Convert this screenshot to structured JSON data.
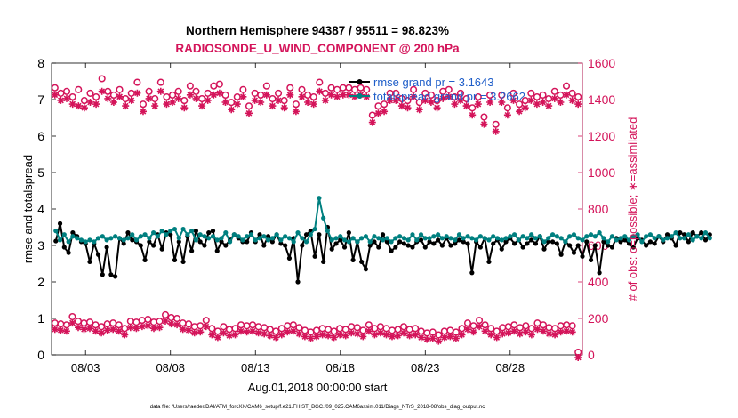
{
  "chart_data": {
    "type": "line",
    "title_line1": "Northern Hemisphere 94387 / 95511 = 98.823%",
    "title_line2": "RADIOSONDE_U_WIND_COMPONENT @ 200 hPa",
    "ylabel_left": "rmse and totalspread",
    "ylabel_right": "# of obs: o=possible; ∗=assimilated",
    "xlabel": "Aug.01,2018 00:00:00 start",
    "footnote": "data file: /Users/raeder/DAI/ATM_forcXX/CAM6_setup/f.e21.FHIST_BGC.f09_025.CAM6assim.011/Diags_NTrS_2018-08/obs_diag_output.nc",
    "xlim": [
      1.0,
      32.25
    ],
    "ylim_left": [
      0,
      8
    ],
    "ylim_right": [
      0,
      1600
    ],
    "x_tick_values": [
      3,
      8,
      13,
      18,
      23,
      28
    ],
    "x_tick_labels": [
      "08/03",
      "08/08",
      "08/13",
      "08/18",
      "08/23",
      "08/28"
    ],
    "y_left_ticks": [
      "0",
      "1",
      "2",
      "3",
      "4",
      "5",
      "6",
      "7",
      "8"
    ],
    "y_right_ticks": [
      "0",
      "200",
      "400",
      "600",
      "800",
      "1000",
      "1200",
      "1400",
      "1600"
    ],
    "x_start": 1.25,
    "x_step": 0.25,
    "series": [
      {
        "name": "rmse",
        "legend": "rmse grand pr = 3.1643",
        "color": "#000000",
        "axis": "left",
        "values": [
          3.12,
          3.6,
          2.95,
          2.8,
          3.35,
          3.25,
          3.1,
          3.05,
          2.55,
          3.05,
          2.75,
          2.2,
          2.95,
          2.2,
          2.15,
          3.2,
          3.05,
          3.35,
          3.15,
          3.1,
          3.0,
          2.6,
          3.1,
          3.0,
          3.3,
          2.9,
          3.35,
          3.3,
          2.6,
          3.1,
          2.55,
          3.25,
          2.85,
          3.4,
          3.1,
          3.0,
          3.35,
          3.4,
          2.85,
          3.1,
          3.0,
          3.15,
          3.3,
          3.2,
          3.1,
          3.1,
          3.35,
          3.1,
          3.3,
          3.0,
          3.25,
          3.1,
          3.3,
          3.05,
          3.0,
          2.65,
          3.2,
          2.0,
          3.0,
          3.3,
          3.4,
          2.7,
          3.3,
          2.55,
          3.5,
          2.9,
          3.05,
          3.15,
          2.95,
          3.35,
          2.6,
          3.1,
          2.55,
          2.35,
          3.0,
          3.1,
          2.95,
          3.3,
          3.1,
          2.85,
          2.95,
          3.1,
          3.05,
          3.0,
          2.95,
          3.1,
          3.15,
          2.95,
          3.1,
          3.05,
          3.15,
          3.0,
          3.2,
          3.0,
          3.05,
          3.15,
          3.1,
          3.05,
          2.25,
          3.1,
          2.95,
          3.2,
          2.55,
          3.05,
          3.15,
          2.9,
          3.1,
          3.2,
          3.05,
          3.15,
          2.95,
          3.05,
          3.15,
          3.05,
          3.25,
          2.9,
          3.1,
          3.1,
          3.05,
          2.75,
          3.1,
          3.0,
          2.8,
          3.0,
          2.7,
          3.1,
          2.6,
          3.0,
          2.25,
          3.1,
          3.0,
          2.95,
          3.2,
          3.1,
          3.15,
          3.05,
          2.95,
          3.2,
          3.15,
          3.0,
          3.1,
          3.05,
          3.25,
          3.1,
          3.3,
          3.2,
          3.0,
          3.35,
          3.3,
          3.1,
          3.35,
          3.25,
          3.35,
          3.15,
          3.3
        ]
      },
      {
        "name": "totalspread",
        "legend": "totalspread grand pr = 3.2662",
        "color": "#008080",
        "axis": "left",
        "values": [
          3.4,
          3.15,
          3.3,
          3.1,
          3.25,
          3.2,
          3.15,
          3.1,
          3.15,
          3.1,
          3.2,
          3.25,
          3.15,
          3.2,
          3.25,
          3.2,
          3.15,
          3.2,
          3.3,
          3.15,
          3.25,
          3.3,
          3.2,
          3.35,
          3.25,
          3.4,
          3.3,
          3.4,
          3.45,
          3.2,
          3.45,
          3.3,
          3.4,
          3.15,
          3.3,
          3.25,
          3.2,
          3.25,
          3.15,
          3.2,
          3.35,
          3.1,
          3.3,
          3.25,
          3.15,
          3.25,
          3.3,
          3.15,
          3.2,
          3.25,
          3.15,
          3.2,
          3.3,
          3.15,
          3.25,
          3.2,
          3.1,
          3.35,
          3.2,
          3.1,
          3.3,
          3.45,
          4.3,
          3.75,
          3.4,
          3.15,
          3.2,
          3.25,
          3.15,
          3.1,
          3.2,
          3.1,
          3.2,
          3.25,
          3.1,
          3.25,
          3.2,
          3.15,
          3.2,
          3.1,
          3.2,
          3.25,
          3.2,
          3.15,
          3.3,
          3.15,
          3.3,
          3.2,
          3.2,
          3.25,
          3.3,
          3.2,
          3.25,
          3.2,
          3.15,
          3.3,
          3.2,
          3.25,
          3.2,
          3.15,
          3.25,
          3.2,
          3.15,
          3.25,
          3.2,
          3.15,
          3.2,
          3.25,
          3.3,
          3.15,
          3.25,
          3.2,
          3.3,
          3.2,
          3.25,
          3.1,
          3.2,
          3.3,
          3.25,
          3.2,
          3.1,
          3.25,
          3.3,
          3.2,
          3.15,
          3.25,
          3.3,
          3.25,
          3.35,
          3.2,
          3.1,
          3.25,
          3.15,
          3.2,
          3.25,
          3.15,
          3.25,
          3.3,
          3.1,
          3.25,
          3.3,
          3.2,
          3.25,
          3.15,
          3.2,
          3.25,
          3.35,
          3.2,
          3.2,
          3.3,
          3.15,
          3.25,
          3.2,
          3.35,
          3.2
        ]
      },
      {
        "name": "obs possible (upper)",
        "color": "#d4145a",
        "axis": "right",
        "marker": "o",
        "values": [
          1450,
          1420,
          1430,
          1400,
          1440,
          1380,
          1420,
          1400,
          1500,
          1430,
          1410,
          1440,
          1390,
          1420,
          1480,
          1360,
          1430,
          1390,
          1480,
          1400,
          1410,
          1430,
          1380,
          1460,
          1430,
          1390,
          1420,
          1460,
          1470,
          1410,
          1370,
          1400,
          1440,
          1350,
          1420,
          1410,
          1460,
          1390,
          1420,
          1380,
          1450,
          1360,
          1440,
          1410,
          1400,
          1480,
          1420,
          1450,
          1440,
          1450,
          1450,
          1440,
          1450,
          1440,
          1300,
          1350,
          1360,
          1420,
          1420,
          1390,
          1380,
          1440,
          1370,
          1420,
          1410,
          1380,
          1430,
          1440,
          1400,
          1420,
          1390,
          1340,
          1400,
          1290,
          1410,
          1250,
          1410,
          1340,
          1420,
          1360,
          1380,
          1420,
          1400,
          1410,
          1390,
          1430,
          1410,
          1460,
          1420,
          1400
        ]
      },
      {
        "name": "obs assimilated (upper)",
        "color": "#d4145a",
        "axis": "right",
        "marker": "*",
        "values": [
          1440,
          1410,
          1420,
          1390,
          1380,
          1370,
          1400,
          1390,
          1460,
          1420,
          1400,
          1430,
          1380,
          1410,
          1450,
          1350,
          1420,
          1380,
          1460,
          1390,
          1400,
          1420,
          1370,
          1440,
          1420,
          1380,
          1410,
          1440,
          1450,
          1400,
          1360,
          1390,
          1430,
          1340,
          1410,
          1400,
          1440,
          1380,
          1410,
          1370,
          1440,
          1350,
          1430,
          1400,
          1390,
          1460,
          1410,
          1440,
          1430,
          1440,
          1440,
          1430,
          1440,
          1430,
          1290,
          1340,
          1350,
          1410,
          1410,
          1380,
          1370,
          1430,
          1360,
          1410,
          1400,
          1370,
          1420,
          1430,
          1390,
          1410,
          1380,
          1330,
          1390,
          1280,
          1400,
          1240,
          1400,
          1330,
          1410,
          1350,
          1370,
          1410,
          1390,
          1400,
          1380,
          1420,
          1400,
          1440,
          1410,
          1390
        ]
      },
      {
        "name": "obs possible (lower)",
        "color": "#d4145a",
        "axis": "right",
        "marker": "o",
        "values": [
          160,
          155,
          150,
          195,
          170,
          160,
          165,
          150,
          140,
          155,
          160,
          150,
          130,
          170,
          165,
          175,
          180,
          165,
          170,
          205,
          190,
          185,
          160,
          155,
          140,
          145,
          175,
          130,
          115,
          140,
          125,
          130,
          150,
          145,
          150,
          140,
          135,
          125,
          115,
          130,
          145,
          150,
          135,
          120,
          110,
          120,
          130,
          125,
          115,
          130,
          125,
          140,
          135,
          120,
          150,
          130,
          140,
          130,
          120,
          125,
          140,
          125,
          130,
          115,
          105,
          110,
          95,
          115,
          120,
          110,
          130,
          160,
          145,
          175,
          150,
          130,
          115,
          135,
          140,
          150,
          135,
          145,
          130,
          160,
          150,
          135,
          130,
          145,
          150,
          145,
          0
        ]
      },
      {
        "name": "obs assimilated (lower)",
        "color": "#d4145a",
        "axis": "right",
        "marker": "*",
        "values": [
          155,
          150,
          145,
          190,
          165,
          155,
          160,
          145,
          135,
          150,
          155,
          145,
          125,
          165,
          160,
          170,
          175,
          160,
          165,
          200,
          185,
          180,
          155,
          150,
          135,
          140,
          170,
          125,
          110,
          135,
          120,
          125,
          145,
          140,
          145,
          135,
          130,
          120,
          110,
          125,
          140,
          145,
          130,
          115,
          105,
          115,
          125,
          120,
          110,
          125,
          120,
          135,
          130,
          115,
          145,
          125,
          135,
          125,
          115,
          120,
          135,
          120,
          125,
          110,
          100,
          105,
          90,
          110,
          115,
          105,
          125,
          155,
          140,
          170,
          145,
          125,
          110,
          130,
          135,
          145,
          130,
          140,
          125,
          155,
          145,
          130,
          125,
          140,
          145,
          140,
          0
        ]
      }
    ]
  }
}
